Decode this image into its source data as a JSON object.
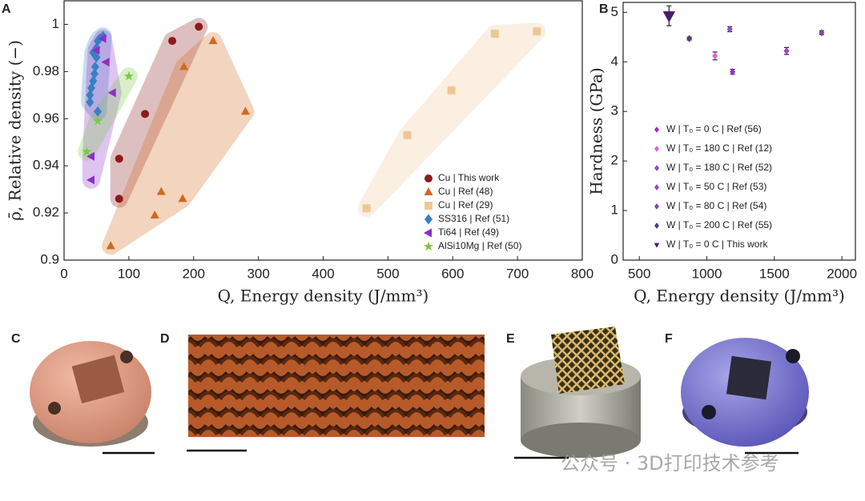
{
  "panel_labels": [
    "A",
    "B",
    "C",
    "D",
    "E",
    "F"
  ],
  "watermark": "公众号 · 3D打印技术参考",
  "chart_data": [
    {
      "type": "scatter",
      "xlabel": "Q, Energy density (J/mm³)",
      "ylabel": "ρ̄, Relative density (−)",
      "xlim": [
        0,
        800
      ],
      "ylim": [
        0.9,
        1.01
      ],
      "xticks": [
        0,
        100,
        200,
        300,
        400,
        500,
        600,
        700,
        800
      ],
      "yticks": [
        0.9,
        0.92,
        0.94,
        0.96,
        0.98,
        1
      ],
      "regions": true,
      "legend": "lower right",
      "series": [
        {
          "name": "Cu | This work",
          "color": "#8b1c1c",
          "marker": "circle",
          "x": [
            85,
            85,
            125,
            167,
            208
          ],
          "values": [
            0.943,
            0.926,
            0.962,
            0.993,
            0.999
          ]
        },
        {
          "name": "Cu | Ref (48)",
          "color": "#d2691e",
          "marker": "triangle-up",
          "x": [
            72,
            140,
            150,
            183,
            185,
            230,
            280
          ],
          "values": [
            0.906,
            0.919,
            0.929,
            0.926,
            0.982,
            0.993,
            0.963
          ]
        },
        {
          "name": "Cu | Ref (29)",
          "color": "#efc796",
          "marker": "square",
          "x": [
            467,
            530,
            598,
            665,
            730
          ],
          "values": [
            0.922,
            0.953,
            0.972,
            0.996,
            0.997
          ]
        },
        {
          "name": "SS316 | Ref (51)",
          "color": "#3a7fc4",
          "marker": "diamond",
          "x": [
            40,
            40,
            42,
            45,
            47,
            48,
            50,
            50,
            52,
            55,
            60,
            52,
            45
          ],
          "values": [
            0.967,
            0.97,
            0.973,
            0.976,
            0.979,
            0.982,
            0.986,
            0.99,
            0.993,
            0.994,
            0.995,
            0.963,
            0.988
          ]
        },
        {
          "name": "Ti64 | Ref (49)",
          "color": "#8b2fc9",
          "marker": "triangle-left",
          "x": [
            42,
            42,
            65,
            75,
            50,
            60
          ],
          "values": [
            0.934,
            0.944,
            0.984,
            0.971,
            0.989,
            0.994
          ]
        },
        {
          "name": "AlSi10Mg | Ref (50)",
          "color": "#7ac943",
          "marker": "star",
          "x": [
            35,
            52,
            100
          ],
          "values": [
            0.946,
            0.959,
            0.978
          ]
        }
      ]
    },
    {
      "type": "errorbar",
      "xlabel": "Q, Energy density (J/mm³)",
      "ylabel": "Hardness (GPa)",
      "xlim": [
        380,
        2100
      ],
      "ylim": [
        0,
        5.2
      ],
      "xticks": [
        500,
        1000,
        1500,
        2000
      ],
      "yticks": [
        0,
        1,
        2,
        3,
        4,
        5
      ],
      "legend": "lower left",
      "series": [
        {
          "name": "W | T₀ = 0 C | Ref (56)",
          "color": "#9b30d0",
          "marker": "diamond",
          "x": [
            1190
          ],
          "values": [
            3.8
          ],
          "errors": [
            0.05
          ]
        },
        {
          "name": "W | T₀ = 180 C | Ref (12)",
          "color": "#d46ad8",
          "marker": "diamond",
          "x": [
            1060
          ],
          "values": [
            4.12
          ],
          "errors": [
            0.08
          ]
        },
        {
          "name": "W | T₀ = 180 C | Ref (52)",
          "color": "#8a4fbf",
          "marker": "diamond",
          "x": [
            1170
          ],
          "values": [
            4.66
          ],
          "errors": [
            0.05
          ]
        },
        {
          "name": "W | T₀ = 50 C | Ref (53)",
          "color": "#a040d8",
          "marker": "diamond",
          "x": [
            1590
          ],
          "values": [
            4.22
          ],
          "errors": [
            0.07
          ]
        },
        {
          "name": "W | T₀ = 80 C | Ref (54)",
          "color": "#7b4aa8",
          "marker": "diamond",
          "x": [
            1850
          ],
          "values": [
            4.59
          ],
          "errors": [
            0.04
          ]
        },
        {
          "name": "W | T₀ = 200 C | Ref (55)",
          "color": "#5a3a7a",
          "marker": "diamond",
          "x": [
            870
          ],
          "values": [
            4.47
          ],
          "errors": [
            0.03
          ]
        },
        {
          "name": "W | T₀ = 0 C | This work",
          "color": "#4b1a6b",
          "marker": "triangle-down",
          "x": [
            720
          ],
          "values": [
            4.93
          ],
          "errors": [
            0.2
          ]
        }
      ]
    }
  ]
}
